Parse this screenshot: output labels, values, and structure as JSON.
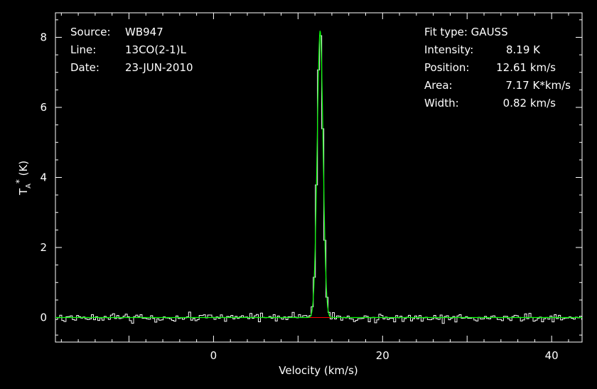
{
  "chart_data": {
    "type": "line",
    "xlabel": "Velocity (km/s)",
    "ylabel": "T_A* (K)",
    "xlim": [
      -18.7,
      43.6
    ],
    "ylim": [
      -0.7,
      8.7
    ],
    "x_ticks": [
      0,
      20,
      40
    ],
    "y_ticks": [
      0,
      2,
      4,
      6,
      8
    ],
    "grid": false,
    "colors": {
      "background": "#000000",
      "spectrum": "#ffffff",
      "fit": "#00ff00",
      "baseline": "#ff0000",
      "text": "#ffffff"
    },
    "info_left": [
      {
        "label": "Source:",
        "value": "WB947"
      },
      {
        "label": "Line:",
        "value": "13CO(2-1)L"
      },
      {
        "label": "Date:",
        "value": "23-JUN-2010"
      }
    ],
    "fit_title": "Fit type: GAUSS",
    "fit_params": [
      {
        "label": "Intensity:",
        "value": "8.19 K"
      },
      {
        "label": "Position:",
        "value": "12.61 km/s"
      },
      {
        "label": "Area:",
        "value": "7.17 K*km/s"
      },
      {
        "label": "Width:",
        "value": "0.82 km/s"
      }
    ],
    "gaussian": {
      "amplitude": 8.19,
      "center": 12.61,
      "fwhm": 0.82
    },
    "baseline_range": [
      10.8,
      14.0
    ],
    "channel_width": 0.25,
    "noise_rms": 0.06
  }
}
